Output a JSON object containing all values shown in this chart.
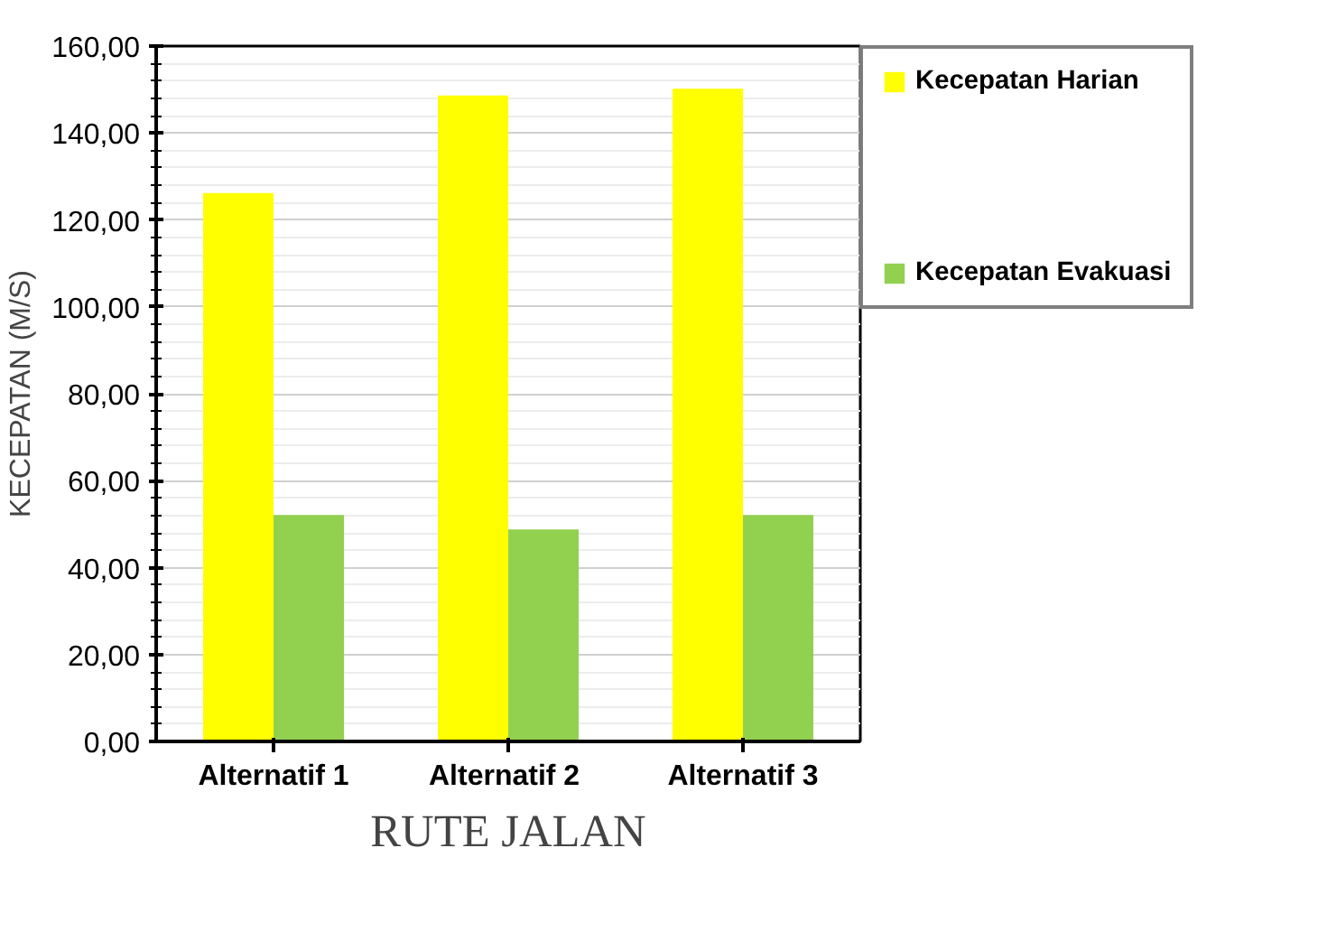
{
  "chart_data": {
    "type": "bar",
    "xlabel": "RUTE JALAN",
    "ylabel": "KECEPATAN (M/S)",
    "categories": [
      "Alternatif 1",
      "Alternatif  2",
      "Alternatif 3"
    ],
    "series": [
      {
        "name": "Kecepatan Harian",
        "color": "#ffff00",
        "values": [
          126.2,
          148.6,
          150.2
        ]
      },
      {
        "name": "Kecepatan Evakuasi",
        "color": "#92d050",
        "values": [
          52.1,
          48.8,
          52.1
        ]
      }
    ],
    "ylim": [
      0,
      160
    ],
    "yticks": [
      {
        "value": 0,
        "label": "0,00"
      },
      {
        "value": 20,
        "label": "20,00"
      },
      {
        "value": 40,
        "label": "40,00"
      },
      {
        "value": 60,
        "label": "60,00"
      },
      {
        "value": 80,
        "label": "80,00"
      },
      {
        "value": 100,
        "label": "100,00"
      },
      {
        "value": 120,
        "label": "120,00"
      },
      {
        "value": 140,
        "label": "140,00"
      },
      {
        "value": 160,
        "label": "160,00"
      }
    ],
    "grid": "y",
    "legend": "right"
  }
}
